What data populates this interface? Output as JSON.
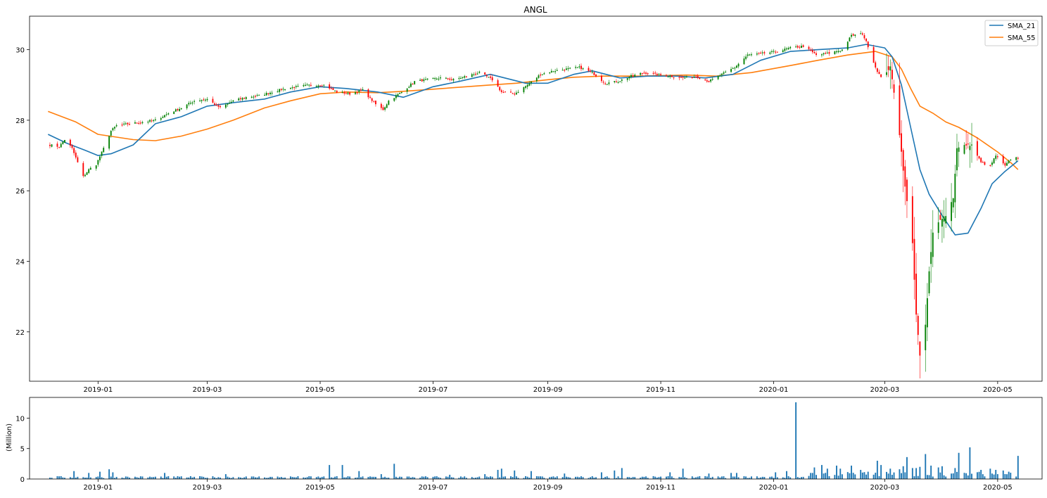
{
  "chart_data": [
    {
      "type": "candlestick",
      "title": "ANGL",
      "xlabel": "",
      "ylabel": "",
      "ylim": [
        20.6,
        30.95
      ],
      "yticks": [
        22,
        24,
        26,
        28,
        30
      ],
      "x_range": [
        "2018-11-25",
        "2020-05-25"
      ],
      "xticks": [
        "2019-01",
        "2019-03",
        "2019-05",
        "2019-07",
        "2019-09",
        "2019-11",
        "2020-01",
        "2020-03",
        "2020-05"
      ],
      "legend": {
        "placement": "top-right",
        "entries": [
          "SMA_21",
          "SMA_55"
        ]
      },
      "grid": false,
      "colors": {
        "up": "#008000",
        "down": "#ff0000",
        "sma_21": "#1f77b4",
        "sma_55": "#ff7f0e"
      },
      "anchors": [
        [
          "2018-12-06",
          27.3
        ],
        [
          "2018-12-11",
          27.25
        ],
        [
          "2018-12-14",
          27.45
        ],
        [
          "2018-12-18",
          27.2
        ],
        [
          "2018-12-21",
          26.8
        ],
        [
          "2018-12-24",
          26.4
        ],
        [
          "2018-12-27",
          26.6
        ],
        [
          "2018-12-31",
          26.75
        ],
        [
          "2019-01-04",
          27.2
        ],
        [
          "2019-01-08",
          27.7
        ],
        [
          "2019-01-11",
          27.85
        ],
        [
          "2019-01-18",
          27.9
        ],
        [
          "2019-01-25",
          27.95
        ],
        [
          "2019-02-01",
          28.0
        ],
        [
          "2019-02-08",
          28.2
        ],
        [
          "2019-02-15",
          28.35
        ],
        [
          "2019-02-22",
          28.55
        ],
        [
          "2019-03-01",
          28.6
        ],
        [
          "2019-03-08",
          28.35
        ],
        [
          "2019-03-15",
          28.55
        ],
        [
          "2019-03-22",
          28.65
        ],
        [
          "2019-03-29",
          28.7
        ],
        [
          "2019-04-05",
          28.8
        ],
        [
          "2019-04-12",
          28.9
        ],
        [
          "2019-04-19",
          28.95
        ],
        [
          "2019-04-26",
          29.0
        ],
        [
          "2019-05-03",
          29.0
        ],
        [
          "2019-05-10",
          28.8
        ],
        [
          "2019-05-17",
          28.75
        ],
        [
          "2019-05-24",
          28.85
        ],
        [
          "2019-05-31",
          28.45
        ],
        [
          "2019-06-04",
          28.3
        ],
        [
          "2019-06-07",
          28.55
        ],
        [
          "2019-06-14",
          28.8
        ],
        [
          "2019-06-21",
          29.1
        ],
        [
          "2019-06-28",
          29.15
        ],
        [
          "2019-07-05",
          29.2
        ],
        [
          "2019-07-12",
          29.15
        ],
        [
          "2019-07-19",
          29.25
        ],
        [
          "2019-07-26",
          29.35
        ],
        [
          "2019-08-02",
          29.15
        ],
        [
          "2019-08-07",
          28.8
        ],
        [
          "2019-08-14",
          28.75
        ],
        [
          "2019-08-21",
          29.0
        ],
        [
          "2019-08-28",
          29.3
        ],
        [
          "2019-09-04",
          29.4
        ],
        [
          "2019-09-11",
          29.45
        ],
        [
          "2019-09-18",
          29.5
        ],
        [
          "2019-09-25",
          29.35
        ],
        [
          "2019-10-02",
          29.05
        ],
        [
          "2019-10-09",
          29.1
        ],
        [
          "2019-10-16",
          29.25
        ],
        [
          "2019-10-23",
          29.35
        ],
        [
          "2019-10-30",
          29.3
        ],
        [
          "2019-11-06",
          29.25
        ],
        [
          "2019-11-13",
          29.2
        ],
        [
          "2019-11-20",
          29.25
        ],
        [
          "2019-11-27",
          29.1
        ],
        [
          "2019-12-04",
          29.3
        ],
        [
          "2019-12-11",
          29.5
        ],
        [
          "2019-12-18",
          29.85
        ],
        [
          "2019-12-27",
          29.9
        ],
        [
          "2020-01-03",
          29.95
        ],
        [
          "2020-01-10",
          30.05
        ],
        [
          "2020-01-17",
          30.1
        ],
        [
          "2020-01-24",
          29.85
        ],
        [
          "2020-01-31",
          29.9
        ],
        [
          "2020-02-07",
          30.0
        ],
        [
          "2020-02-12",
          30.4
        ],
        [
          "2020-02-18",
          30.45
        ],
        [
          "2020-02-21",
          30.1
        ],
        [
          "2020-02-25",
          29.5
        ],
        [
          "2020-02-28",
          29.2
        ],
        [
          "2020-03-04",
          29.5
        ],
        [
          "2020-03-06",
          28.8
        ],
        [
          "2020-03-09",
          27.6
        ],
        [
          "2020-03-12",
          26.1
        ],
        [
          "2020-03-16",
          24.5
        ],
        [
          "2020-03-18",
          22.5
        ],
        [
          "2020-03-20",
          21.3
        ],
        [
          "2020-03-23",
          22.2
        ],
        [
          "2020-03-25",
          23.7
        ],
        [
          "2020-03-27",
          24.8
        ],
        [
          "2020-03-31",
          25.2
        ],
        [
          "2020-04-03",
          25.3
        ],
        [
          "2020-04-07",
          25.8
        ],
        [
          "2020-04-09",
          27.2
        ],
        [
          "2020-04-14",
          27.3
        ],
        [
          "2020-04-17",
          27.3
        ],
        [
          "2020-04-22",
          26.8
        ],
        [
          "2020-04-27",
          26.7
        ],
        [
          "2020-04-30",
          27.0
        ],
        [
          "2020-05-05",
          26.7
        ],
        [
          "2020-05-08",
          26.9
        ],
        [
          "2020-05-12",
          26.95
        ]
      ],
      "sma_21": [
        [
          "2018-12-05",
          27.6
        ],
        [
          "2018-12-15",
          27.35
        ],
        [
          "2018-12-25",
          27.15
        ],
        [
          "2019-01-01",
          27.0
        ],
        [
          "2019-01-08",
          27.05
        ],
        [
          "2019-01-20",
          27.3
        ],
        [
          "2019-02-01",
          27.9
        ],
        [
          "2019-02-15",
          28.1
        ],
        [
          "2019-03-01",
          28.4
        ],
        [
          "2019-03-15",
          28.5
        ],
        [
          "2019-04-01",
          28.6
        ],
        [
          "2019-04-15",
          28.8
        ],
        [
          "2019-05-01",
          28.95
        ],
        [
          "2019-05-15",
          28.9
        ],
        [
          "2019-06-01",
          28.8
        ],
        [
          "2019-06-15",
          28.65
        ],
        [
          "2019-07-01",
          28.95
        ],
        [
          "2019-07-15",
          29.1
        ],
        [
          "2019-08-01",
          29.3
        ],
        [
          "2019-08-20",
          29.05
        ],
        [
          "2019-09-01",
          29.05
        ],
        [
          "2019-09-15",
          29.3
        ],
        [
          "2019-09-25",
          29.4
        ],
        [
          "2019-10-10",
          29.2
        ],
        [
          "2019-10-25",
          29.25
        ],
        [
          "2019-11-10",
          29.25
        ],
        [
          "2019-11-25",
          29.2
        ],
        [
          "2019-12-10",
          29.3
        ],
        [
          "2019-12-25",
          29.7
        ],
        [
          "2020-01-10",
          29.95
        ],
        [
          "2020-01-25",
          30.0
        ],
        [
          "2020-02-10",
          30.05
        ],
        [
          "2020-02-20",
          30.15
        ],
        [
          "2020-03-01",
          30.05
        ],
        [
          "2020-03-05",
          29.8
        ],
        [
          "2020-03-10",
          29.0
        ],
        [
          "2020-03-15",
          27.8
        ],
        [
          "2020-03-20",
          26.6
        ],
        [
          "2020-03-25",
          25.9
        ],
        [
          "2020-04-01",
          25.3
        ],
        [
          "2020-04-08",
          24.75
        ],
        [
          "2020-04-15",
          24.8
        ],
        [
          "2020-04-22",
          25.5
        ],
        [
          "2020-04-28",
          26.2
        ],
        [
          "2020-05-05",
          26.55
        ],
        [
          "2020-05-12",
          26.85
        ]
      ],
      "sma_55": [
        [
          "2018-12-05",
          28.25
        ],
        [
          "2018-12-20",
          27.95
        ],
        [
          "2019-01-01",
          27.6
        ],
        [
          "2019-01-20",
          27.45
        ],
        [
          "2019-02-01",
          27.42
        ],
        [
          "2019-02-15",
          27.55
        ],
        [
          "2019-03-01",
          27.75
        ],
        [
          "2019-03-15",
          28.0
        ],
        [
          "2019-04-01",
          28.35
        ],
        [
          "2019-04-15",
          28.55
        ],
        [
          "2019-05-01",
          28.75
        ],
        [
          "2019-05-15",
          28.8
        ],
        [
          "2019-06-01",
          28.78
        ],
        [
          "2019-06-15",
          28.82
        ],
        [
          "2019-07-01",
          28.88
        ],
        [
          "2019-08-01",
          29.0
        ],
        [
          "2019-08-15",
          29.05
        ],
        [
          "2019-09-01",
          29.15
        ],
        [
          "2019-09-15",
          29.22
        ],
        [
          "2019-10-01",
          29.25
        ],
        [
          "2019-10-20",
          29.25
        ],
        [
          "2019-11-15",
          29.28
        ],
        [
          "2019-12-01",
          29.25
        ],
        [
          "2019-12-20",
          29.35
        ],
        [
          "2020-01-10",
          29.55
        ],
        [
          "2020-01-25",
          29.7
        ],
        [
          "2020-02-10",
          29.85
        ],
        [
          "2020-02-25",
          29.95
        ],
        [
          "2020-03-05",
          29.8
        ],
        [
          "2020-03-10",
          29.45
        ],
        [
          "2020-03-15",
          28.9
        ],
        [
          "2020-03-20",
          28.4
        ],
        [
          "2020-03-27",
          28.2
        ],
        [
          "2020-04-03",
          27.95
        ],
        [
          "2020-04-10",
          27.8
        ],
        [
          "2020-04-20",
          27.5
        ],
        [
          "2020-05-01",
          27.1
        ],
        [
          "2020-05-08",
          26.8
        ],
        [
          "2020-05-12",
          26.6
        ]
      ]
    },
    {
      "type": "bar",
      "title": "",
      "xlabel": "",
      "ylabel": "(Million)",
      "ylim": [
        0,
        13.4
      ],
      "yticks": [
        0,
        5,
        10
      ],
      "x_range": [
        "2018-11-25",
        "2020-05-25"
      ],
      "xticks": [
        "2019-01",
        "2019-03",
        "2019-05",
        "2019-07",
        "2019-09",
        "2019-11",
        "2020-01",
        "2020-03",
        "2020-05"
      ],
      "grid": false,
      "colors": {
        "bar": "#1f77b4"
      },
      "baseline_volume": 0.35,
      "spikes": [
        [
          "2018-12-19",
          1.3
        ],
        [
          "2018-12-27",
          1.0
        ],
        [
          "2019-01-02",
          1.2
        ],
        [
          "2019-01-07",
          1.6
        ],
        [
          "2019-01-09",
          1.1
        ],
        [
          "2019-02-06",
          1.0
        ],
        [
          "2019-03-11",
          0.8
        ],
        [
          "2019-05-06",
          2.3
        ],
        [
          "2019-05-13",
          2.3
        ],
        [
          "2019-05-22",
          1.3
        ],
        [
          "2019-06-10",
          2.5
        ],
        [
          "2019-06-03",
          0.8
        ],
        [
          "2019-07-10",
          0.7
        ],
        [
          "2019-07-29",
          0.8
        ],
        [
          "2019-08-05",
          1.5
        ],
        [
          "2019-08-07",
          1.7
        ],
        [
          "2019-08-14",
          1.4
        ],
        [
          "2019-08-23",
          1.3
        ],
        [
          "2019-09-10",
          0.9
        ],
        [
          "2019-09-30",
          1.1
        ],
        [
          "2019-10-07",
          1.4
        ],
        [
          "2019-10-11",
          1.8
        ],
        [
          "2019-11-06",
          1.1
        ],
        [
          "2019-11-13",
          1.7
        ],
        [
          "2019-11-27",
          0.9
        ],
        [
          "2019-12-09",
          1.0
        ],
        [
          "2019-12-12",
          1.0
        ],
        [
          "2020-01-02",
          1.1
        ],
        [
          "2020-01-08",
          1.3
        ],
        [
          "2020-01-13",
          12.6
        ],
        [
          "2020-01-21",
          1.0
        ],
        [
          "2020-01-23",
          1.9
        ],
        [
          "2020-01-27",
          2.3
        ],
        [
          "2020-01-30",
          1.7
        ],
        [
          "2020-02-04",
          2.2
        ],
        [
          "2020-02-06",
          1.7
        ],
        [
          "2020-02-12",
          2.2
        ],
        [
          "2020-02-17",
          1.5
        ],
        [
          "2020-02-21",
          1.2
        ],
        [
          "2020-02-26",
          3.0
        ],
        [
          "2020-02-28",
          2.3
        ],
        [
          "2020-03-04",
          1.7
        ],
        [
          "2020-03-09",
          1.6
        ],
        [
          "2020-03-11",
          2.1
        ],
        [
          "2020-03-13",
          3.6
        ],
        [
          "2020-03-16",
          1.8
        ],
        [
          "2020-03-18",
          1.8
        ],
        [
          "2020-03-20",
          2.0
        ],
        [
          "2020-03-23",
          4.1
        ],
        [
          "2020-03-26",
          2.2
        ],
        [
          "2020-03-30",
          1.9
        ],
        [
          "2020-04-01",
          2.1
        ],
        [
          "2020-04-08",
          1.8
        ],
        [
          "2020-04-10",
          4.3
        ],
        [
          "2020-04-16",
          5.2
        ],
        [
          "2020-04-22",
          1.5
        ],
        [
          "2020-04-27",
          1.7
        ],
        [
          "2020-04-30",
          1.5
        ],
        [
          "2020-05-04",
          1.4
        ],
        [
          "2020-05-07",
          1.2
        ],
        [
          "2020-05-12",
          3.8
        ]
      ]
    }
  ]
}
